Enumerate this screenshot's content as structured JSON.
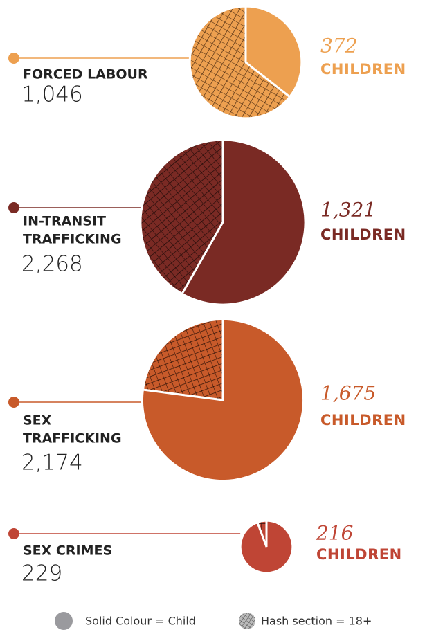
{
  "chart_data": [
    {
      "type": "pie",
      "label": [
        "FORCED LABOUR"
      ],
      "total": {
        "value": 1046,
        "label": "1,046"
      },
      "children": 372,
      "children_text": "CHILDREN",
      "color": "#eda050",
      "hatch": "#4a2a10"
    },
    {
      "type": "pie",
      "label": [
        "IN-TRANSIT",
        "TRAFFICKING"
      ],
      "total": {
        "value": 2268,
        "label": "2,268"
      },
      "children": {
        "value": 1321,
        "label": "1,321"
      },
      "children_text": "CHILDREN",
      "color": "#7a2a24",
      "hatch": "#1e0a08"
    },
    {
      "type": "pie",
      "label": [
        "SEX",
        "TRAFFICKING"
      ],
      "total": {
        "value": 2174,
        "label": "2,174"
      },
      "children": {
        "value": 1675,
        "label": "1,675"
      },
      "children_text": "CHILDREN",
      "color": "#c85a2a",
      "hatch": "#2a1006"
    },
    {
      "type": "pie",
      "label": [
        "SEX CRIMES"
      ],
      "total": 229,
      "children": 216,
      "children_text": "CHILDREN",
      "color": "#bf4535",
      "hatch": "#2a0c08"
    }
  ],
  "legend": [
    "Solid Colour = Child",
    "Hash section = 18+"
  ]
}
